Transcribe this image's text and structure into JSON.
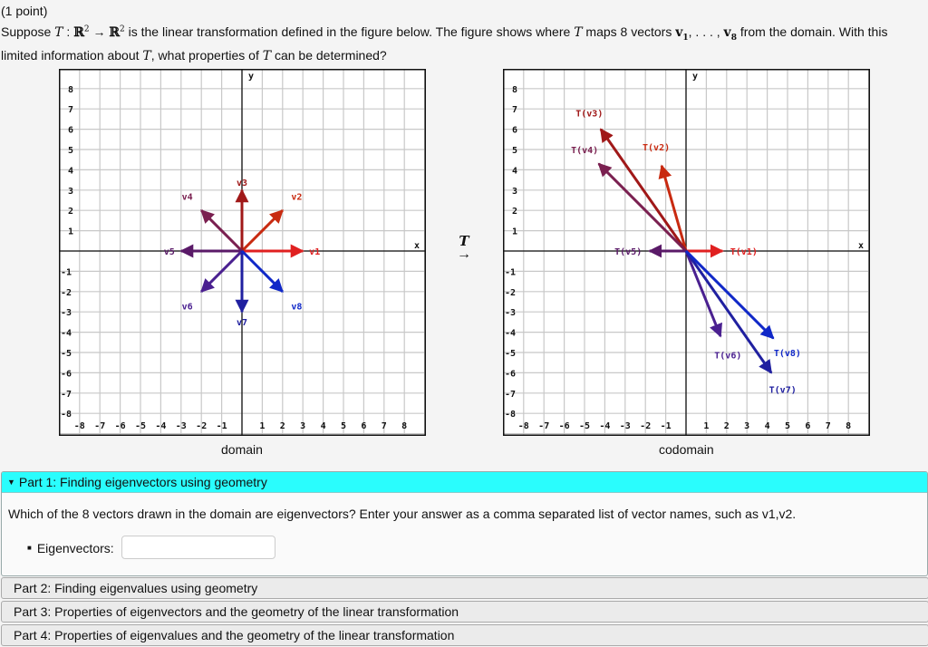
{
  "intro": {
    "points": "(1 point)",
    "line1_prefix": "Suppose ",
    "T": "T",
    "colon": " : ",
    "R": "ℝ",
    "exp": "2",
    "arrow": " → ",
    "line1_mid": " is the linear transformation defined in the figure below. The figure shows where ",
    "line1_mid2": " maps 8 vectors ",
    "v": "v",
    "sub1": "1",
    "dots": ", . . . , ",
    "sub8": "8",
    "line1_end": " from the domain. With this",
    "line2_prefix": "limited information about ",
    "line2_end": ", what properties of ",
    "line2_end2": " can be determined?"
  },
  "figure": {
    "domain_caption": "domain",
    "codomain_caption": "codomain",
    "map_label": "T",
    "map_arrow": "→"
  },
  "chart_data": [
    {
      "type": "vector-plot",
      "title": "domain",
      "xlabel": "x",
      "ylabel": "y",
      "xlim": [
        -8,
        8
      ],
      "ylim": [
        -8,
        8
      ],
      "grid": true,
      "vectors": [
        {
          "name": "v1",
          "x": 3,
          "y": 0,
          "color": "#e02020"
        },
        {
          "name": "v2",
          "x": 2,
          "y": 2,
          "color": "#c82a10"
        },
        {
          "name": "v3",
          "x": 0,
          "y": 3,
          "color": "#a01818"
        },
        {
          "name": "v4",
          "x": -2,
          "y": 2,
          "color": "#7a2050"
        },
        {
          "name": "v5",
          "x": -3,
          "y": 0,
          "color": "#5a1a68"
        },
        {
          "name": "v6",
          "x": -2,
          "y": -2,
          "color": "#4a2090"
        },
        {
          "name": "v7",
          "x": 0,
          "y": -3,
          "color": "#2020a0"
        },
        {
          "name": "v8",
          "x": 2,
          "y": -2,
          "color": "#1028c8"
        }
      ]
    },
    {
      "type": "vector-plot",
      "title": "codomain",
      "xlabel": "x",
      "ylabel": "y",
      "xlim": [
        -8,
        8
      ],
      "ylim": [
        -8,
        8
      ],
      "grid": true,
      "vectors": [
        {
          "name": "T(v1)",
          "x": 1.8,
          "y": 0,
          "color": "#e02020"
        },
        {
          "name": "T(v2)",
          "x": -1.2,
          "y": 4.2,
          "color": "#c82a10"
        },
        {
          "name": "T(v3)",
          "x": -4.2,
          "y": 6,
          "color": "#a01818"
        },
        {
          "name": "T(v4)",
          "x": -4.3,
          "y": 4.3,
          "color": "#7a2050"
        },
        {
          "name": "T(v5)",
          "x": -1.8,
          "y": 0,
          "color": "#5a1a68"
        },
        {
          "name": "T(v6)",
          "x": 1.7,
          "y": -4.2,
          "color": "#4a2090"
        },
        {
          "name": "T(v7)",
          "x": 4.2,
          "y": -6,
          "color": "#2020a0"
        },
        {
          "name": "T(v8)",
          "x": 4.3,
          "y": -4.3,
          "color": "#1028c8"
        }
      ]
    }
  ],
  "part1": {
    "header": "Part 1: Finding eigenvectors using geometry",
    "question": "Which of the 8 vectors drawn in the domain are eigenvectors? Enter your answer as a comma separated list of vector names, such as v1,v2.",
    "field_label": "Eigenvectors:",
    "field_value": "",
    "header_color": "#2afdfd"
  },
  "parts": [
    {
      "label": "Part 2: Finding eigenvalues using geometry"
    },
    {
      "label": "Part 3: Properties of eigenvectors and the geometry of the linear transformation"
    },
    {
      "label": "Part 4: Properties of eigenvalues and the geometry of the linear transformation"
    }
  ]
}
